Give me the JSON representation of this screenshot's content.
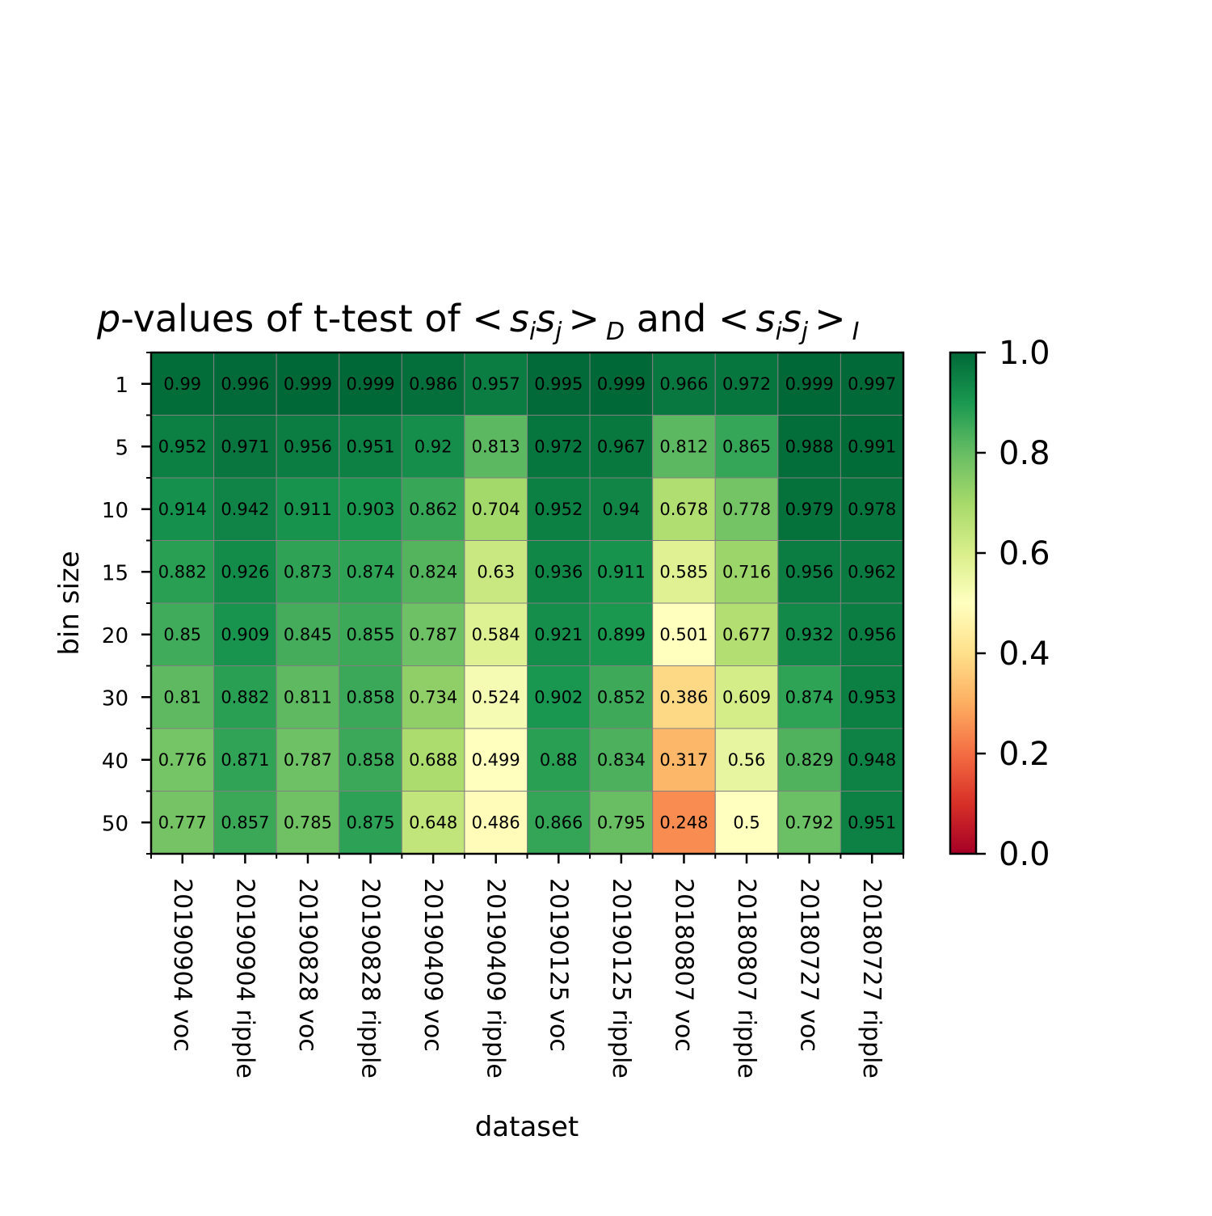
{
  "chart_data": {
    "type": "heatmap",
    "title": {
      "p": "p",
      "rest": "-values of t-test of ",
      "and": " and ",
      "lt": "<",
      "gt": ">",
      "s": "s",
      "i": "i",
      "j": "j",
      "D": "D",
      "I": "I"
    },
    "xlabel": "dataset",
    "ylabel": "bin size",
    "x_categories": [
      "20190904 voc",
      "20190904 ripple",
      "20190828 voc",
      "20190828 ripple",
      "20190409 voc",
      "20190409 ripple",
      "20190125 voc",
      "20190125 ripple",
      "20180807 voc",
      "20180807 ripple",
      "20180727 voc",
      "20180727 ripple"
    ],
    "y_categories": [
      "1",
      "5",
      "10",
      "15",
      "20",
      "30",
      "40",
      "50"
    ],
    "values": [
      [
        "0.99",
        "0.996",
        "0.999",
        "0.999",
        "0.986",
        "0.957",
        "0.995",
        "0.999",
        "0.966",
        "0.972",
        "0.999",
        "0.997"
      ],
      [
        "0.952",
        "0.971",
        "0.956",
        "0.951",
        "0.92",
        "0.813",
        "0.972",
        "0.967",
        "0.812",
        "0.865",
        "0.988",
        "0.991"
      ],
      [
        "0.914",
        "0.942",
        "0.911",
        "0.903",
        "0.862",
        "0.704",
        "0.952",
        "0.94",
        "0.678",
        "0.778",
        "0.979",
        "0.978"
      ],
      [
        "0.882",
        "0.926",
        "0.873",
        "0.874",
        "0.824",
        "0.63",
        "0.936",
        "0.911",
        "0.585",
        "0.716",
        "0.956",
        "0.962"
      ],
      [
        "0.85",
        "0.909",
        "0.845",
        "0.855",
        "0.787",
        "0.584",
        "0.921",
        "0.899",
        "0.501",
        "0.677",
        "0.932",
        "0.956"
      ],
      [
        "0.81",
        "0.882",
        "0.811",
        "0.858",
        "0.734",
        "0.524",
        "0.902",
        "0.852",
        "0.386",
        "0.609",
        "0.874",
        "0.953"
      ],
      [
        "0.776",
        "0.871",
        "0.787",
        "0.858",
        "0.688",
        "0.499",
        "0.88",
        "0.834",
        "0.317",
        "0.56",
        "0.829",
        "0.948"
      ],
      [
        "0.777",
        "0.857",
        "0.785",
        "0.875",
        "0.648",
        "0.486",
        "0.866",
        "0.795",
        "0.248",
        "0.5",
        "0.792",
        "0.951"
      ]
    ],
    "colormap": "RdYlGn",
    "vmin": 0.0,
    "vmax": 1.0,
    "colorbar_ticks": [
      "0.0",
      "0.2",
      "0.4",
      "0.6",
      "0.8",
      "1.0"
    ],
    "grid_color": "#808080"
  }
}
